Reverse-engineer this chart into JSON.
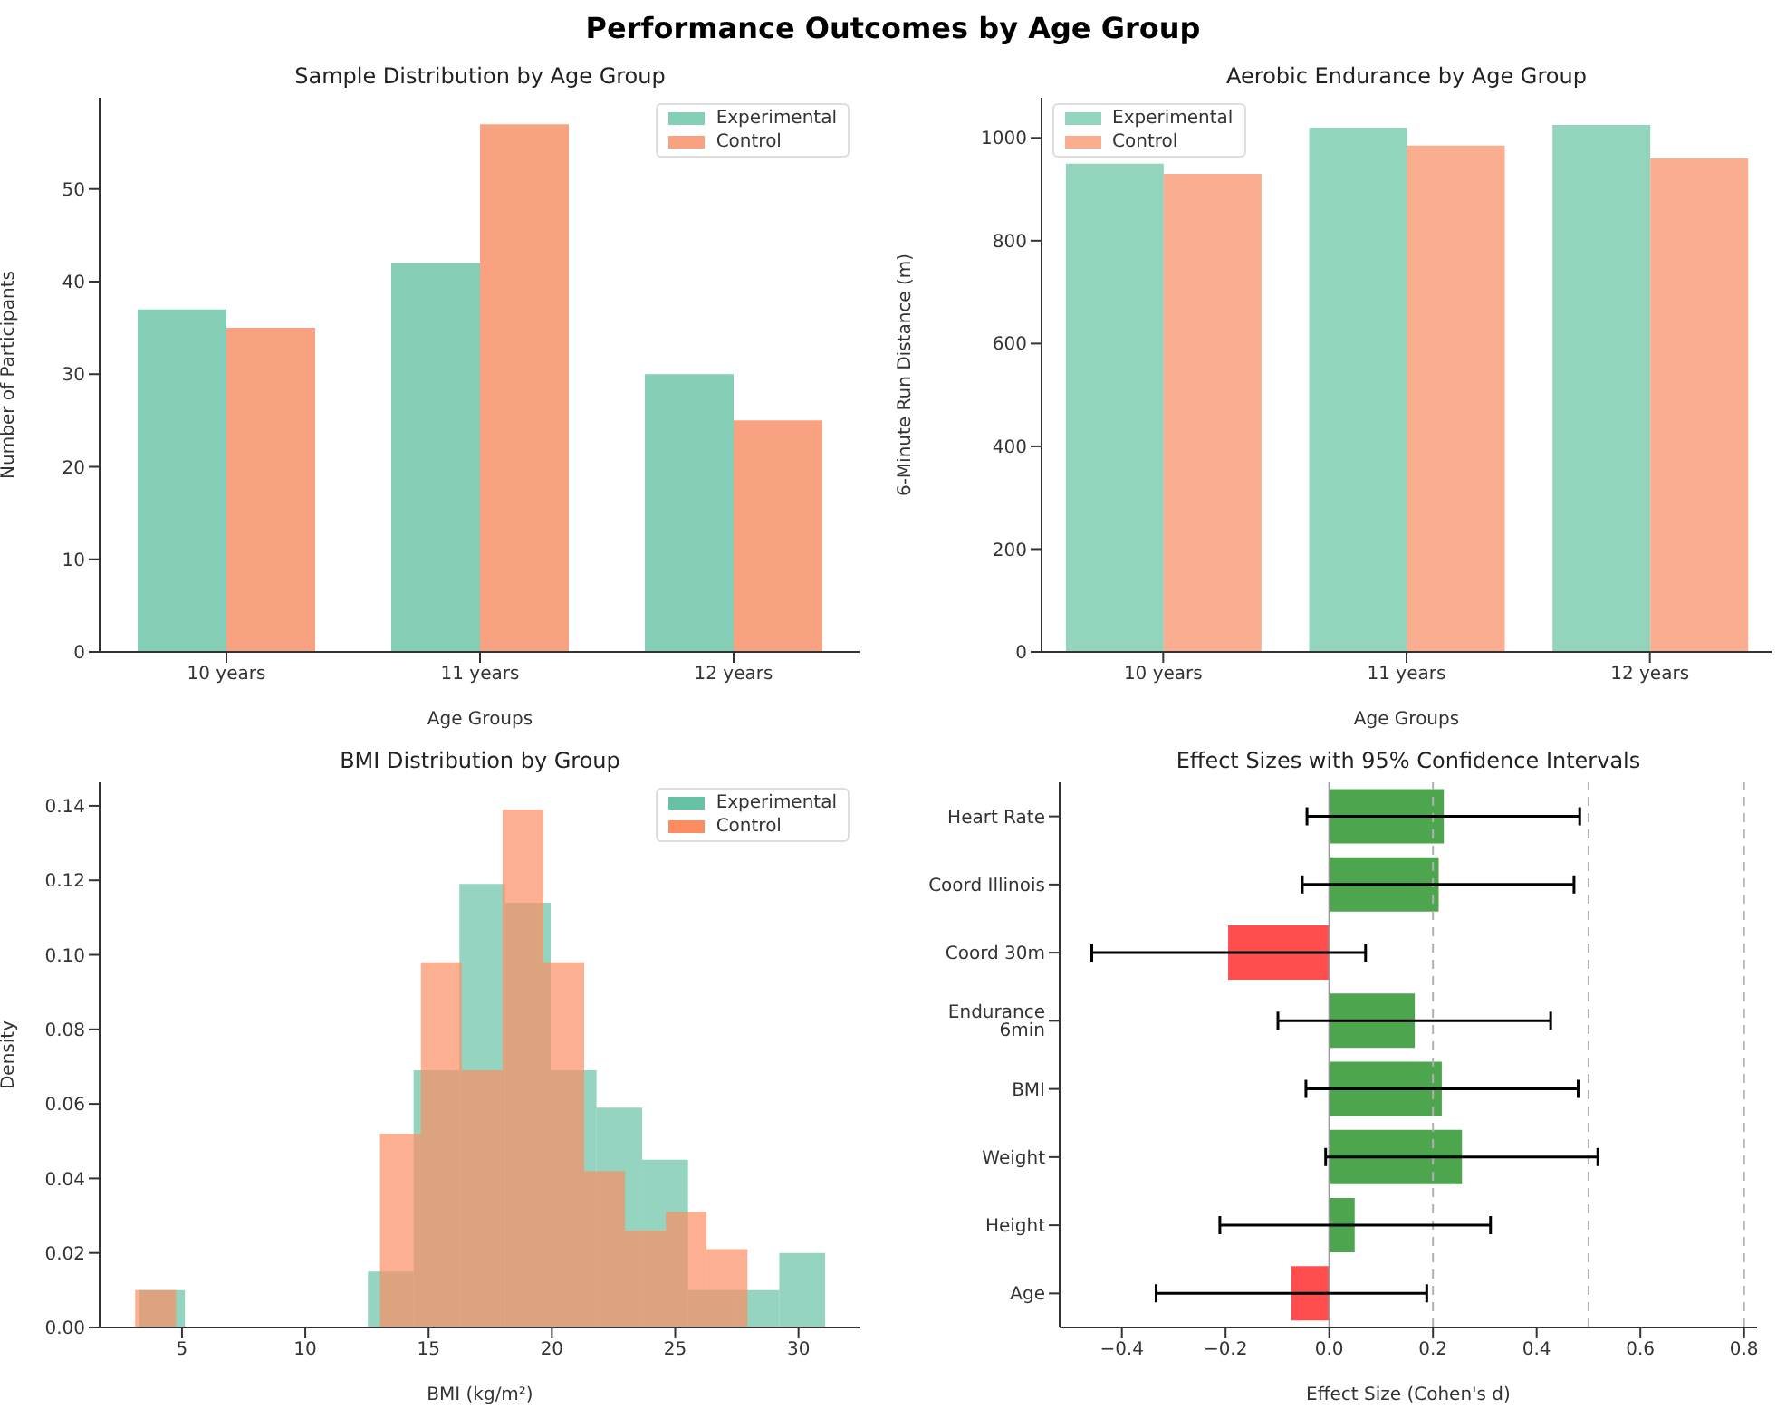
{
  "chart_data": [
    {
      "type": "bar",
      "title": "Performance Outcomes by Age Group",
      "subtitle": "Sample Distribution by Age Group",
      "xlabel": "Age Groups",
      "ylabel": "Number of Participants",
      "categories": [
        "10 years",
        "11 years",
        "12 years"
      ],
      "series": [
        {
          "name": "Experimental",
          "color": "#84cfb5",
          "values": [
            37,
            42,
            30
          ]
        },
        {
          "name": "Control",
          "color": "#f9a281",
          "values": [
            35,
            57,
            25
          ]
        }
      ],
      "ylim": [
        0,
        59.85
      ],
      "yticks": [
        0,
        10,
        20,
        30,
        40,
        50
      ],
      "legend": "top right"
    },
    {
      "type": "bar",
      "title": "Aerobic Endurance by Age Group",
      "xlabel": "Age Groups",
      "ylabel": "6-Minute Run Distance (m)",
      "categories": [
        "10 years",
        "11 years",
        "12 years"
      ],
      "series": [
        {
          "name": "Experimental",
          "color": "#93d4bd",
          "values": [
            950,
            1020,
            1025
          ]
        },
        {
          "name": "Control",
          "color": "#fbae8f",
          "values": [
            930,
            985,
            960
          ]
        }
      ],
      "ylim": [
        0,
        1078
      ],
      "yticks": [
        0,
        200,
        400,
        600,
        800,
        1000
      ],
      "legend": "top left"
    },
    {
      "type": "histogram",
      "title": "BMI Distribution by Group",
      "xlabel": "BMI (kg/m²)",
      "ylabel": "Density",
      "bins": [
        3.27,
        5.12,
        6.98,
        8.83,
        10.69,
        12.54,
        14.39,
        16.25,
        18.1,
        19.95,
        21.81,
        23.66,
        25.52,
        27.37,
        29.22,
        31.08
      ],
      "series": [
        {
          "name": "Experimental",
          "color": "#66c2a5",
          "values": [
            0.01,
            0,
            0,
            0,
            0,
            0.015,
            0.069,
            0.119,
            0.114,
            0.069,
            0.059,
            0.045,
            0.01,
            0.01,
            0.02
          ]
        },
        {
          "name": "Control",
          "color": "#fc8d62",
          "bins": [
            3.1,
            4.76,
            6.41,
            8.07,
            9.72,
            11.38,
            13.03,
            14.69,
            16.34,
            18.0,
            19.65,
            21.31,
            22.96,
            24.62,
            26.27,
            27.93
          ],
          "values": [
            0.01,
            0,
            0,
            0,
            0,
            0,
            0.052,
            0.098,
            0.069,
            0.139,
            0.098,
            0.042,
            0.026,
            0.031,
            0.021
          ]
        }
      ],
      "xlim": [
        1.66,
        32.51
      ],
      "xticks": [
        5,
        10,
        15,
        20,
        25,
        30
      ],
      "ylim": [
        0,
        0.1463
      ],
      "yticks": [
        {
          "value": 0,
          "label": "0.00"
        },
        {
          "value": 0.02,
          "label": "0.02"
        },
        {
          "value": 0.04,
          "label": "0.04"
        },
        {
          "value": 0.06,
          "label": "0.06"
        },
        {
          "value": 0.08,
          "label": "0.08"
        },
        {
          "value": 0.1,
          "label": "0.10"
        },
        {
          "value": 0.12,
          "label": "0.12"
        },
        {
          "value": 0.14,
          "label": "0.14"
        }
      ],
      "legend": "top right"
    },
    {
      "type": "bar",
      "orientation": "horizontal",
      "title": "Effect Sizes with 95% Confidence Intervals",
      "xlabel": "Effect Size (Cohen's d)",
      "categories": [
        "Heart Rate",
        "Coord Illinois",
        "Coord 30m",
        "Endurance 6min",
        "BMI",
        "Weight",
        "Height",
        "Age"
      ],
      "values": [
        0.221,
        0.211,
        -0.195,
        0.165,
        0.217,
        0.256,
        0.049,
        -0.073
      ],
      "colors": [
        "#4da64d",
        "#4da64d",
        "#ff4d4d",
        "#4da64d",
        "#4da64d",
        "#4da64d",
        "#4da64d",
        "#ff4d4d"
      ],
      "errors": [
        [
          -0.043,
          0.483
        ],
        [
          -0.052,
          0.472
        ],
        [
          -0.458,
          0.07
        ],
        [
          -0.099,
          0.427
        ],
        [
          -0.045,
          0.48
        ],
        [
          -0.007,
          0.518
        ],
        [
          -0.211,
          0.311
        ],
        [
          -0.334,
          0.188
        ]
      ],
      "xlim": [
        -0.52,
        0.825
      ],
      "xticks": [
        {
          "value": -0.4,
          "label": "−0.4"
        },
        {
          "value": -0.2,
          "label": "−0.2"
        },
        {
          "value": 0,
          "label": "0.0"
        },
        {
          "value": 0.2,
          "label": "0.2"
        },
        {
          "value": 0.4,
          "label": "0.4"
        },
        {
          "value": 0.6,
          "label": "0.6"
        },
        {
          "value": 0.8,
          "label": "0.8"
        }
      ],
      "ref_lines": [
        {
          "axis": "x",
          "value": 0,
          "color": "#999999",
          "line_style": "solid"
        },
        {
          "axis": "x",
          "value": 0.2,
          "color": "#b0b0b0",
          "line_style": "dashed"
        },
        {
          "axis": "x",
          "value": 0.5,
          "color": "#b0b0b0",
          "line_style": "dashed"
        },
        {
          "axis": "x",
          "value": 0.8,
          "color": "#b0b0b0",
          "line_style": "dashed"
        }
      ]
    }
  ]
}
